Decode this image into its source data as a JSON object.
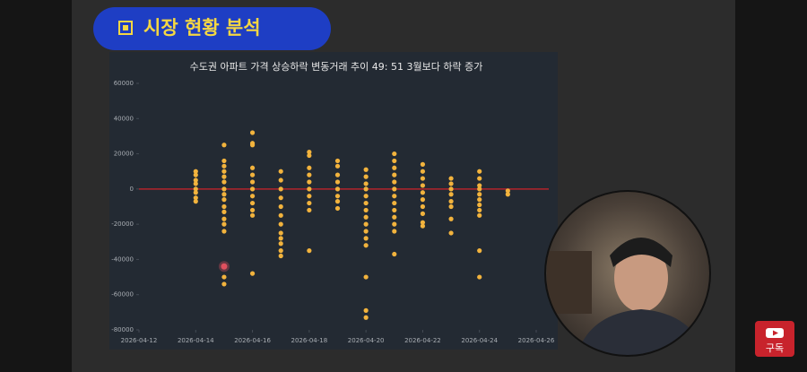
{
  "header": {
    "title": "시장 현황 분석"
  },
  "chart_data": {
    "type": "scatter",
    "title": "수도권 아파트 가격 상승하락 변동거래 추이  49: 51  3월보다 하락 증가",
    "color": "#f2b33d",
    "x": [
      "2026-04-14",
      "2026-04-14",
      "2026-04-14",
      "2026-04-14",
      "2026-04-14",
      "2026-04-14",
      "2026-04-14",
      "2026-04-14",
      "2026-04-15",
      "2026-04-15",
      "2026-04-15",
      "2026-04-15",
      "2026-04-15",
      "2026-04-15",
      "2026-04-15",
      "2026-04-15",
      "2026-04-15",
      "2026-04-15",
      "2026-04-15",
      "2026-04-15",
      "2026-04-15",
      "2026-04-15",
      "2026-04-15",
      "2026-04-15",
      "2026-04-16",
      "2026-04-16",
      "2026-04-16",
      "2026-04-16",
      "2026-04-16",
      "2026-04-16",
      "2026-04-16",
      "2026-04-16",
      "2026-04-16",
      "2026-04-16",
      "2026-04-16",
      "2026-04-16",
      "2026-04-17",
      "2026-04-17",
      "2026-04-17",
      "2026-04-17",
      "2026-04-17",
      "2026-04-17",
      "2026-04-17",
      "2026-04-17",
      "2026-04-17",
      "2026-04-17",
      "2026-04-17",
      "2026-04-17",
      "2026-04-18",
      "2026-04-18",
      "2026-04-18",
      "2026-04-18",
      "2026-04-18",
      "2026-04-18",
      "2026-04-18",
      "2026-04-18",
      "2026-04-18",
      "2026-04-18",
      "2026-04-19",
      "2026-04-19",
      "2026-04-19",
      "2026-04-19",
      "2026-04-19",
      "2026-04-19",
      "2026-04-19",
      "2026-04-19",
      "2026-04-20",
      "2026-04-20",
      "2026-04-20",
      "2026-04-20",
      "2026-04-20",
      "2026-04-20",
      "2026-04-20",
      "2026-04-20",
      "2026-04-20",
      "2026-04-20",
      "2026-04-20",
      "2026-04-20",
      "2026-04-20",
      "2026-04-20",
      "2026-04-20",
      "2026-04-21",
      "2026-04-21",
      "2026-04-21",
      "2026-04-21",
      "2026-04-21",
      "2026-04-21",
      "2026-04-21",
      "2026-04-21",
      "2026-04-21",
      "2026-04-21",
      "2026-04-21",
      "2026-04-21",
      "2026-04-21",
      "2026-04-22",
      "2026-04-22",
      "2026-04-22",
      "2026-04-22",
      "2026-04-22",
      "2026-04-22",
      "2026-04-22",
      "2026-04-22",
      "2026-04-22",
      "2026-04-22",
      "2026-04-23",
      "2026-04-23",
      "2026-04-23",
      "2026-04-23",
      "2026-04-23",
      "2026-04-23",
      "2026-04-23",
      "2026-04-23",
      "2026-04-24",
      "2026-04-24",
      "2026-04-24",
      "2026-04-24",
      "2026-04-24",
      "2026-04-24",
      "2026-04-24",
      "2026-04-24",
      "2026-04-24",
      "2026-04-24",
      "2026-04-24",
      "2026-04-25",
      "2026-04-25"
    ],
    "values": [
      10000,
      8000,
      5000,
      3000,
      0,
      -2000,
      -5000,
      -7000,
      25000,
      16000,
      13000,
      10000,
      7000,
      4000,
      0,
      -3000,
      -6000,
      -10000,
      -13000,
      -17000,
      -20000,
      -24000,
      -50000,
      -54000,
      32000,
      26000,
      25000,
      12000,
      8000,
      4000,
      0,
      -4000,
      -8000,
      -12000,
      -15000,
      -48000,
      10000,
      5000,
      0,
      -5000,
      -10000,
      -15000,
      -20000,
      -25000,
      -28000,
      -31000,
      -35000,
      -38000,
      21000,
      19000,
      12000,
      8000,
      4000,
      0,
      -4000,
      -8000,
      -12000,
      -35000,
      16000,
      13000,
      8000,
      4000,
      0,
      -4000,
      -7000,
      -11000,
      11000,
      7000,
      3000,
      0,
      -4000,
      -8000,
      -12000,
      -16000,
      -20000,
      -24000,
      -28000,
      -32000,
      -50000,
      -69000,
      -73000,
      20000,
      16000,
      12000,
      8000,
      4000,
      0,
      -4000,
      -8000,
      -12000,
      -16000,
      -20000,
      -24000,
      -37000,
      14000,
      10000,
      6000,
      2000,
      -2000,
      -6000,
      -10000,
      -14000,
      -19000,
      -21000,
      6000,
      3000,
      0,
      -3000,
      -7000,
      -10000,
      -17000,
      -25000,
      10000,
      6000,
      2000,
      0,
      -3000,
      -6000,
      -9000,
      -12000,
      -15000,
      -35000,
      -50000,
      -1000,
      -3000
    ],
    "highlight": {
      "x": "2026-04-15",
      "y": -44000,
      "color": "#e0505e"
    },
    "reference_line": {
      "y": 0,
      "color": "#b3242c"
    },
    "xlim": [
      "2026-04-12",
      "2026-04-26"
    ],
    "xticks": [
      "2026-04-12",
      "2026-04-14",
      "2026-04-16",
      "2026-04-18",
      "2026-04-20",
      "2026-04-22",
      "2026-04-24",
      "2026-04-26"
    ],
    "ylim": [
      -80000,
      60000
    ],
    "yticks": [
      -80000,
      -60000,
      -40000,
      -20000,
      0,
      20000,
      40000,
      60000
    ]
  },
  "subscribe": "구독"
}
